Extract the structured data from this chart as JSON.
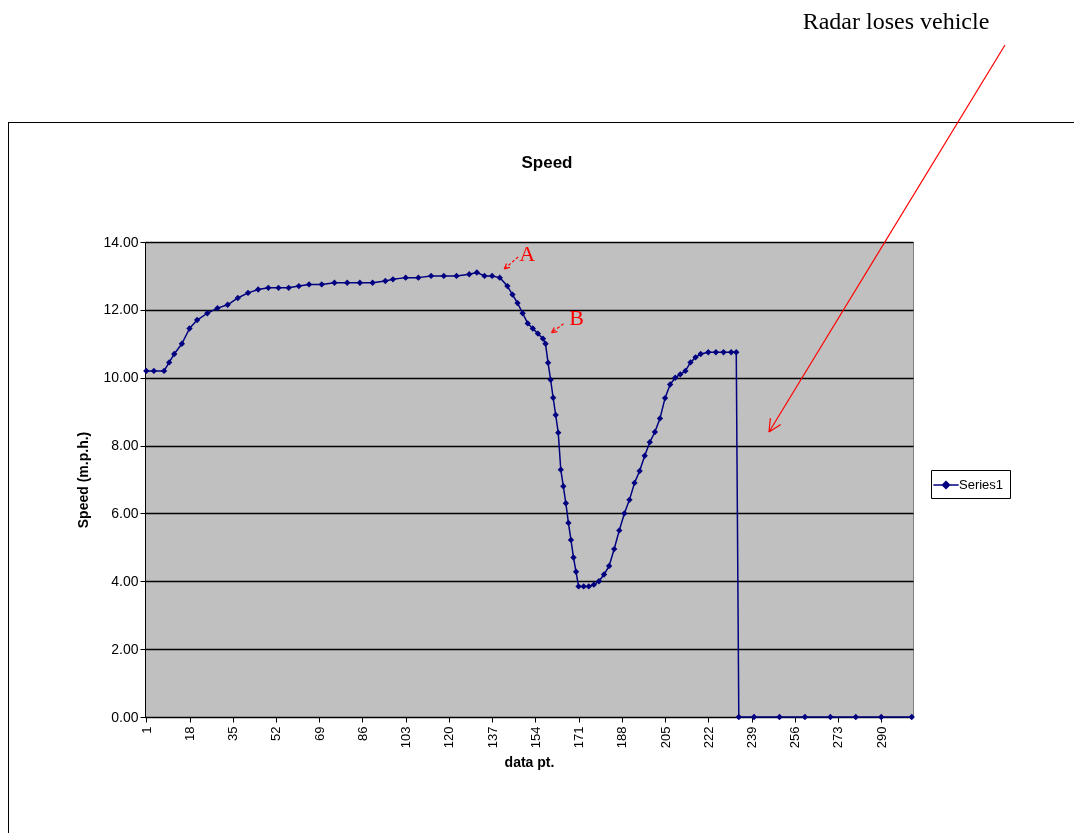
{
  "chart_data": {
    "type": "line",
    "title": "Speed",
    "xlabel": "data pt.",
    "ylabel": "Speed (m.p.h.)",
    "series": [
      {
        "name": "Series1",
        "color": "#000080",
        "x": [
          1,
          4,
          8,
          10,
          12,
          15,
          18,
          21,
          25,
          29,
          33,
          37,
          41,
          45,
          49,
          53,
          57,
          61,
          65,
          70,
          75,
          80,
          85,
          90,
          95,
          98,
          103,
          108,
          113,
          118,
          123,
          128,
          131,
          134,
          137,
          140,
          143,
          145,
          147,
          149,
          151,
          153,
          155,
          157,
          158,
          159,
          160,
          161,
          162,
          163,
          164,
          165,
          166,
          167,
          168,
          169,
          170,
          171,
          173,
          175,
          177,
          179,
          181,
          183,
          185,
          187,
          189,
          191,
          193,
          195,
          197,
          199,
          201,
          203,
          205,
          207,
          209,
          211,
          213,
          215,
          217,
          219,
          222,
          225,
          228,
          231,
          233,
          234,
          240,
          250,
          260,
          270,
          280,
          290,
          302
        ],
        "values": [
          10.2,
          10.2,
          10.2,
          10.45,
          10.7,
          11.0,
          11.45,
          11.7,
          11.9,
          12.05,
          12.15,
          12.35,
          12.5,
          12.6,
          12.65,
          12.65,
          12.65,
          12.7,
          12.75,
          12.75,
          12.8,
          12.8,
          12.8,
          12.8,
          12.85,
          12.9,
          12.95,
          12.95,
          13.0,
          13.0,
          13.0,
          13.05,
          13.1,
          13.0,
          13.0,
          12.95,
          12.7,
          12.45,
          12.2,
          11.9,
          11.6,
          11.45,
          11.3,
          11.15,
          11.0,
          10.44,
          9.94,
          9.41,
          8.9,
          8.38,
          7.29,
          6.8,
          6.3,
          5.72,
          5.22,
          4.7,
          4.28,
          3.85,
          3.85,
          3.85,
          3.9,
          4.0,
          4.2,
          4.45,
          4.95,
          5.5,
          6.0,
          6.4,
          6.9,
          7.25,
          7.7,
          8.1,
          8.4,
          8.8,
          9.4,
          9.8,
          10.0,
          10.1,
          10.2,
          10.45,
          10.6,
          10.7,
          10.75,
          10.75,
          10.75,
          10.75,
          10.75,
          0,
          0,
          0,
          0,
          0,
          0,
          0,
          0
        ]
      }
    ],
    "xlim": [
      0.5,
      302.5
    ],
    "xticks": [
      1,
      18,
      35,
      52,
      69,
      86,
      103,
      120,
      137,
      154,
      171,
      188,
      205,
      222,
      239,
      256,
      273,
      290
    ],
    "ylim": [
      0,
      14
    ],
    "yticks": [
      {
        "value": 0,
        "label": "0.00"
      },
      {
        "value": 2,
        "label": "2.00"
      },
      {
        "value": 4,
        "label": "4.00"
      },
      {
        "value": 6,
        "label": "6.00"
      },
      {
        "value": 8,
        "label": "8.00"
      },
      {
        "value": 10,
        "label": "10.00"
      },
      {
        "value": 12,
        "label": "12.00"
      },
      {
        "value": 14,
        "label": "14.00"
      }
    ],
    "grid": "y",
    "legend": "right",
    "marker": "diamond",
    "line_style": "solid",
    "annotations": [
      "Radar loses vehicle",
      {
        "text": "A",
        "x": 139,
        "y": 13.0
      },
      {
        "text": "B",
        "x": 158,
        "y": 11.0
      }
    ]
  }
}
